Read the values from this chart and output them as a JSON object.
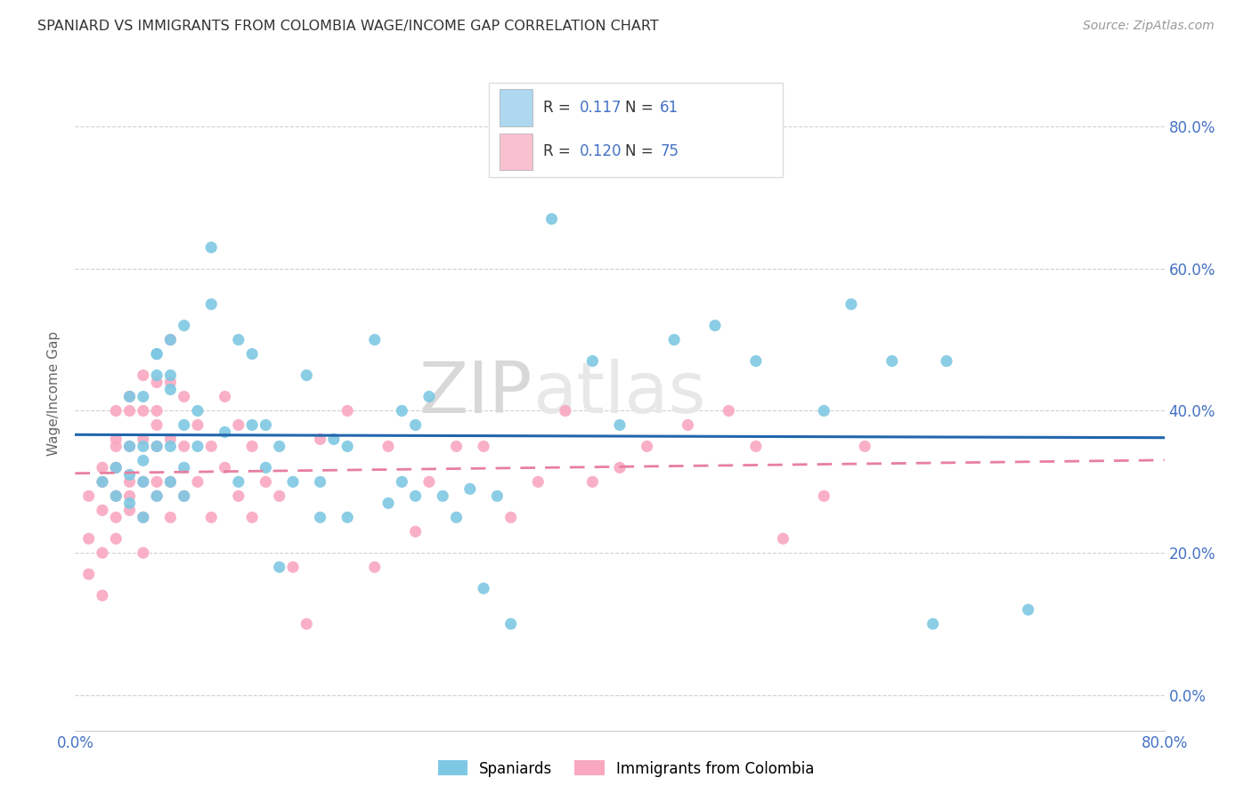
{
  "title": "SPANIARD VS IMMIGRANTS FROM COLOMBIA WAGE/INCOME GAP CORRELATION CHART",
  "source_text": "Source: ZipAtlas.com",
  "ylabel": "Wage/Income Gap",
  "xlim": [
    0.0,
    0.8
  ],
  "ylim": [
    -0.05,
    0.9
  ],
  "ytick_values": [
    0.0,
    0.2,
    0.4,
    0.6,
    0.8
  ],
  "xtick_values": [
    0.0,
    0.1,
    0.2,
    0.3,
    0.4,
    0.5,
    0.6,
    0.7,
    0.8
  ],
  "watermark_zip": "ZIP",
  "watermark_atlas": "atlas",
  "legend_r1_label": "R = ",
  "legend_r1_val": "0.117",
  "legend_n1_label": "  N = ",
  "legend_n1_val": "61",
  "legend_r2_label": "R = ",
  "legend_r2_val": "0.120",
  "legend_n2_label": "  N = ",
  "legend_n2_val": "75",
  "legend_label1": "Spaniards",
  "legend_label2": "Immigrants from Colombia",
  "blue_scatter": "#7EC8E3",
  "pink_scatter": "#F9A8C0",
  "blue_line": "#2166ac",
  "pink_line": "#E87FA0",
  "blue_legend_box": "#ADD8F0",
  "pink_legend_box": "#F9C0D0",
  "stat_color": "#4472C4",
  "label_color": "#4472C4",
  "spaniards_x": [
    0.02,
    0.03,
    0.03,
    0.04,
    0.04,
    0.04,
    0.04,
    0.05,
    0.05,
    0.05,
    0.05,
    0.05,
    0.06,
    0.06,
    0.06,
    0.06,
    0.06,
    0.07,
    0.07,
    0.07,
    0.07,
    0.07,
    0.08,
    0.08,
    0.08,
    0.08,
    0.09,
    0.09,
    0.1,
    0.1,
    0.11,
    0.12,
    0.12,
    0.13,
    0.13,
    0.14,
    0.14,
    0.15,
    0.15,
    0.16,
    0.17,
    0.18,
    0.18,
    0.19,
    0.2,
    0.2,
    0.22,
    0.23,
    0.24,
    0.24,
    0.25,
    0.25,
    0.26,
    0.27,
    0.28,
    0.29,
    0.3,
    0.31,
    0.32,
    0.35,
    0.38
  ],
  "spaniards_y": [
    0.3,
    0.32,
    0.28,
    0.31,
    0.27,
    0.35,
    0.42,
    0.25,
    0.3,
    0.33,
    0.35,
    0.42,
    0.28,
    0.35,
    0.45,
    0.48,
    0.48,
    0.3,
    0.35,
    0.43,
    0.5,
    0.45,
    0.28,
    0.32,
    0.38,
    0.52,
    0.35,
    0.4,
    0.55,
    0.63,
    0.37,
    0.3,
    0.5,
    0.38,
    0.48,
    0.32,
    0.38,
    0.35,
    0.18,
    0.3,
    0.45,
    0.25,
    0.3,
    0.36,
    0.25,
    0.35,
    0.5,
    0.27,
    0.3,
    0.4,
    0.28,
    0.38,
    0.42,
    0.28,
    0.25,
    0.29,
    0.15,
    0.28,
    0.1,
    0.67,
    0.47
  ],
  "spaniards_x2": [
    0.4,
    0.44,
    0.47,
    0.5,
    0.55,
    0.57,
    0.6,
    0.63,
    0.64,
    0.7
  ],
  "spaniards_y2": [
    0.38,
    0.5,
    0.52,
    0.47,
    0.4,
    0.55,
    0.47,
    0.1,
    0.47,
    0.12
  ],
  "colombia_x": [
    0.01,
    0.01,
    0.01,
    0.02,
    0.02,
    0.02,
    0.02,
    0.02,
    0.03,
    0.03,
    0.03,
    0.03,
    0.03,
    0.03,
    0.03,
    0.04,
    0.04,
    0.04,
    0.04,
    0.04,
    0.04,
    0.05,
    0.05,
    0.05,
    0.05,
    0.05,
    0.05,
    0.06,
    0.06,
    0.06,
    0.06,
    0.06,
    0.06,
    0.07,
    0.07,
    0.07,
    0.07,
    0.07,
    0.08,
    0.08,
    0.08,
    0.09,
    0.09,
    0.1,
    0.1,
    0.11,
    0.11,
    0.12,
    0.12,
    0.13,
    0.13,
    0.14,
    0.15,
    0.16,
    0.17,
    0.18,
    0.2,
    0.22,
    0.23,
    0.25,
    0.26,
    0.28,
    0.3,
    0.32,
    0.34,
    0.36,
    0.38,
    0.4,
    0.42,
    0.45,
    0.48,
    0.5,
    0.52,
    0.55,
    0.58
  ],
  "colombia_y": [
    0.28,
    0.22,
    0.17,
    0.32,
    0.26,
    0.3,
    0.2,
    0.14,
    0.28,
    0.32,
    0.36,
    0.4,
    0.25,
    0.35,
    0.22,
    0.3,
    0.35,
    0.4,
    0.28,
    0.42,
    0.26,
    0.25,
    0.3,
    0.36,
    0.4,
    0.45,
    0.2,
    0.28,
    0.35,
    0.4,
    0.44,
    0.3,
    0.38,
    0.25,
    0.3,
    0.36,
    0.44,
    0.5,
    0.28,
    0.35,
    0.42,
    0.3,
    0.38,
    0.25,
    0.35,
    0.32,
    0.42,
    0.28,
    0.38,
    0.25,
    0.35,
    0.3,
    0.28,
    0.18,
    0.1,
    0.36,
    0.4,
    0.18,
    0.35,
    0.23,
    0.3,
    0.35,
    0.35,
    0.25,
    0.3,
    0.4,
    0.3,
    0.32,
    0.35,
    0.38,
    0.4,
    0.35,
    0.22,
    0.28,
    0.35
  ]
}
